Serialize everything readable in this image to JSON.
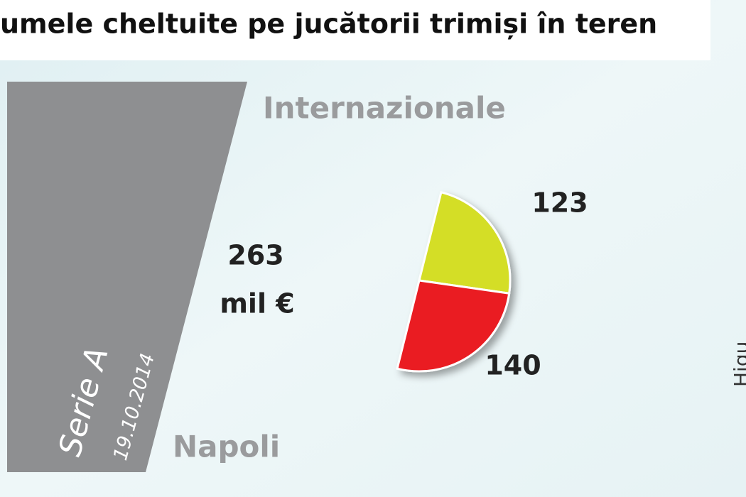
{
  "chart_data": {
    "type": "pie",
    "title": "umele cheltuite pe jucătorii trimiși în teren",
    "league": "Serie A",
    "date": "19.10.2014",
    "total": 263,
    "total_unit": "mil €",
    "categories": [
      "Internazionale",
      "Napoli"
    ],
    "values": [
      123,
      140
    ],
    "colors": [
      "#d4de26",
      "#ea1c24"
    ],
    "side_label": "Higu"
  }
}
